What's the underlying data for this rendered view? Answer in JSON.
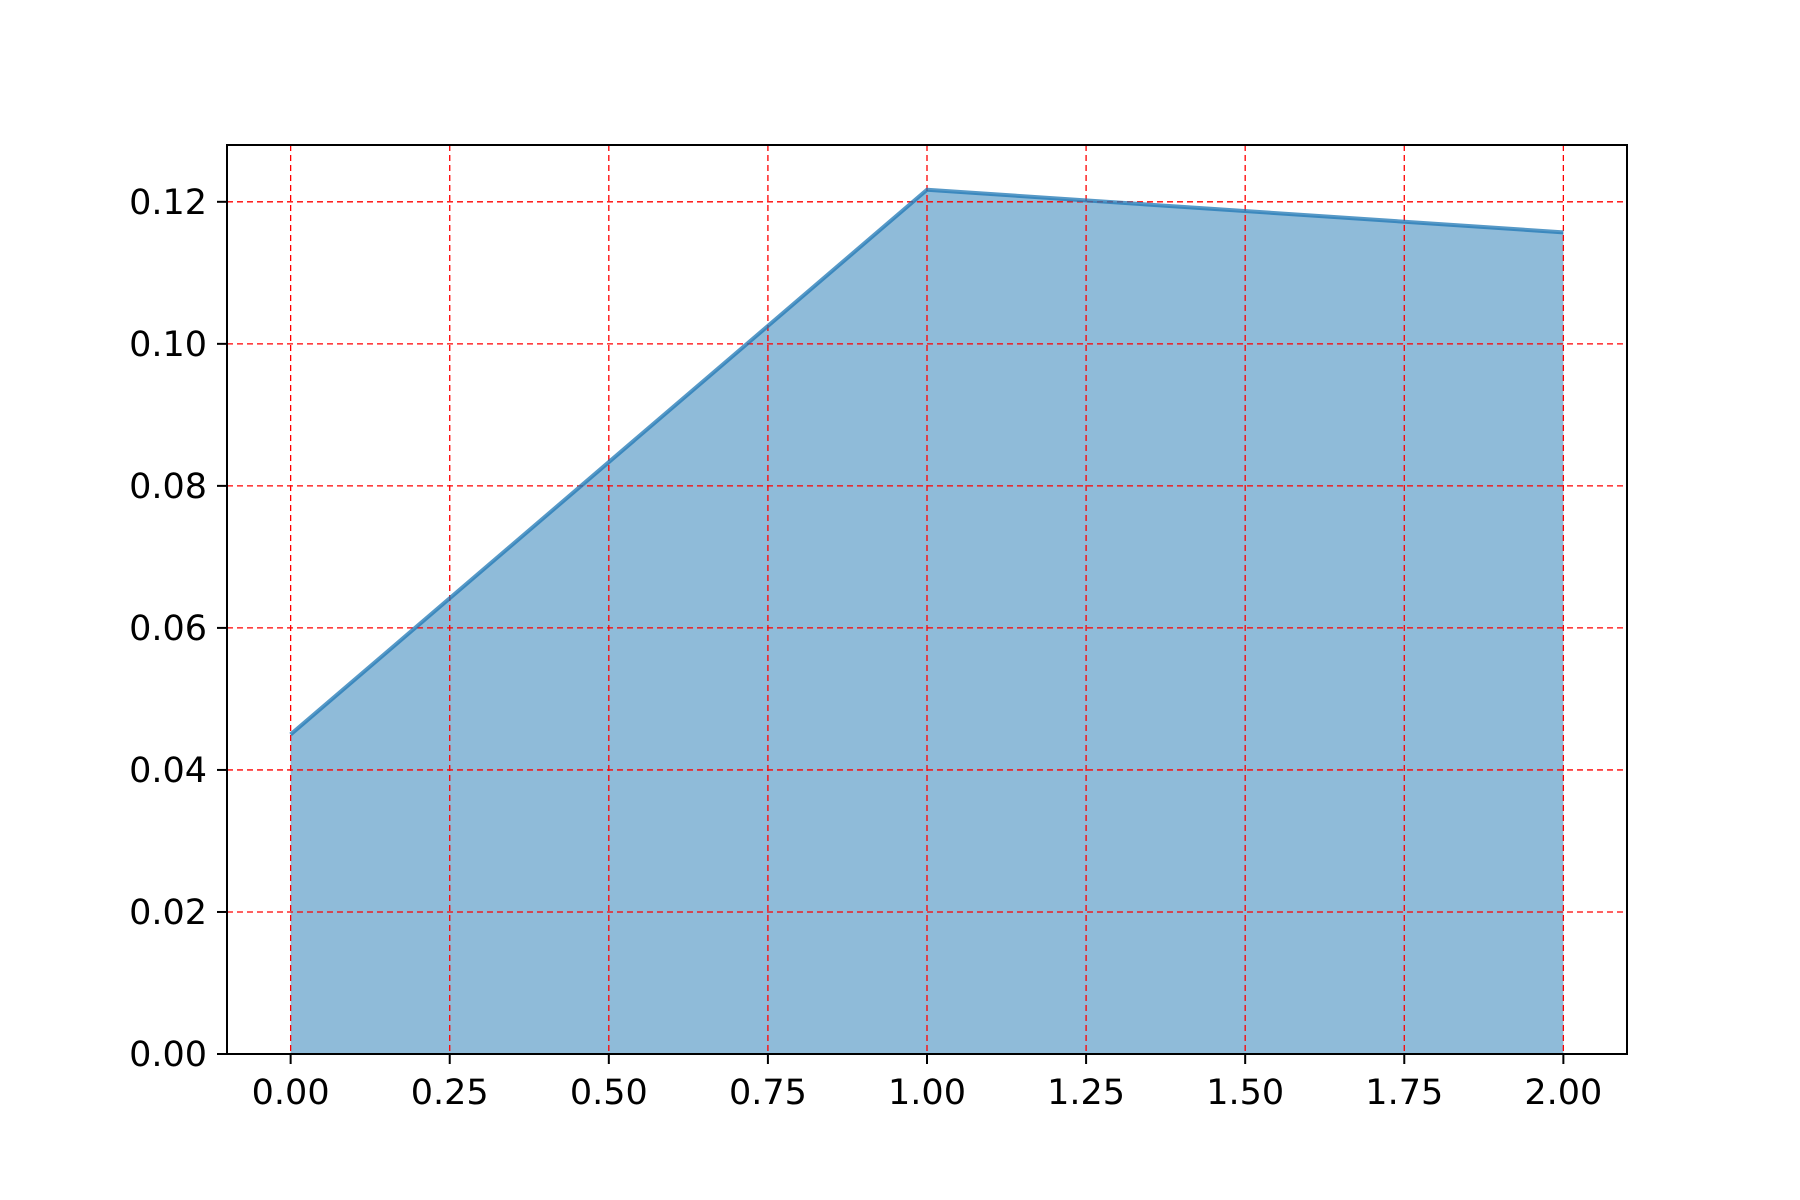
{
  "chart_data": {
    "type": "area",
    "title": "",
    "xlabel": "",
    "ylabel": "",
    "x": [
      0.0,
      1.0,
      2.0
    ],
    "series": [
      {
        "values": [
          0.045,
          0.1217,
          0.1157
        ]
      }
    ],
    "xlim": [
      -0.1,
      2.1
    ],
    "ylim": [
      0.0,
      0.128
    ],
    "x_ticks": [
      0.0,
      0.25,
      0.5,
      0.75,
      1.0,
      1.25,
      1.5,
      1.75,
      2.0
    ],
    "x_tick_labels": [
      "0.00",
      "0.25",
      "0.50",
      "0.75",
      "1.00",
      "1.25",
      "1.50",
      "1.75",
      "2.00"
    ],
    "y_ticks": [
      0.0,
      0.02,
      0.04,
      0.06,
      0.08,
      0.1,
      0.12
    ],
    "y_tick_labels": [
      "0.00",
      "0.02",
      "0.04",
      "0.06",
      "0.08",
      "0.10",
      "0.12"
    ],
    "grid": true,
    "legend": "none",
    "colors": {
      "fill": "#1f77b4",
      "line": "#1f77b4",
      "grid": "#ff0000",
      "axis": "#000000"
    }
  }
}
